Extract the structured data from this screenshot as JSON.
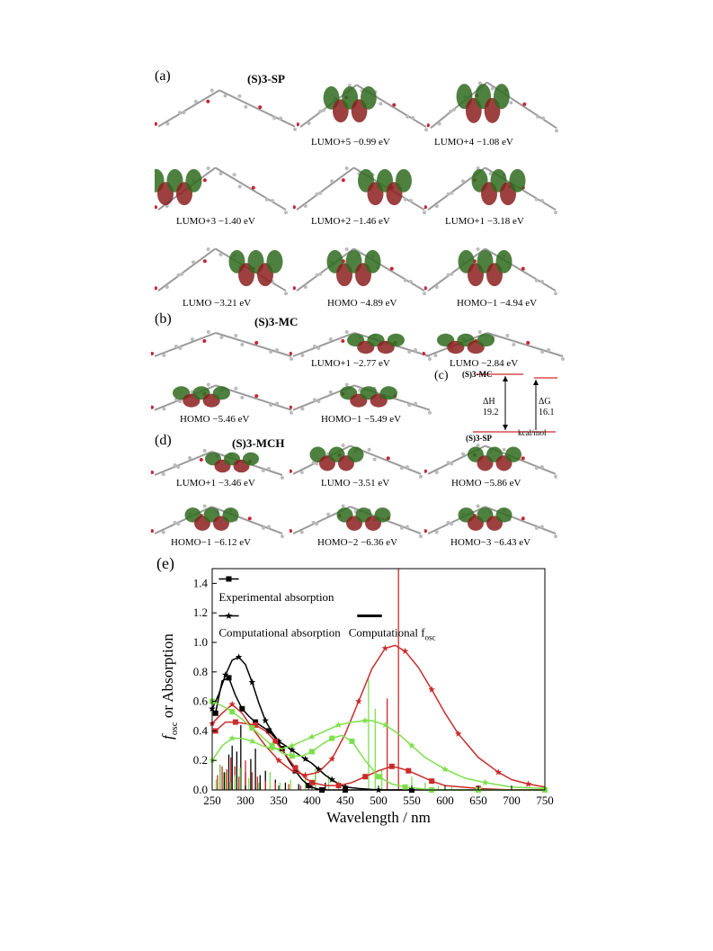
{
  "panels": {
    "a": {
      "label": "(a)",
      "title": "(S)3-SP",
      "captions": [
        "LUMO+5 −0.99 eV",
        "LUMO+4 −1.08 eV",
        "LUMO+3 −1.40 eV",
        "LUMO+2 −1.46 eV",
        "LUMO+1 −3.18 eV",
        "LUMO −3.21 eV",
        "HOMO −4.89 eV",
        "HOMO−1 −4.94 eV"
      ]
    },
    "b": {
      "label": "(b)",
      "title": "(S)3-MC",
      "captions": [
        "LUMO+1 −2.77 eV",
        "LUMO −2.84 eV",
        "HOMO −5.46 eV",
        "HOMO−1 −5.49 eV"
      ]
    },
    "c": {
      "label": "(c)",
      "top": "(S)3-MC",
      "bottom": "(S)3-SP",
      "dh_label": "ΔH",
      "dh_value": "19.2",
      "dg_label": "ΔG",
      "dg_value": "16.1",
      "unit": "kcal/mol"
    },
    "d": {
      "label": "(d)",
      "title": "(S)3-MCH",
      "captions": [
        "LUMO+1 −3.46 eV",
        "LUMO −3.51 eV",
        "HOMO −5.86 eV",
        "HOMO−1 −6.12 eV",
        "HOMO−2 −6.36 eV",
        "HOMO−3 −6.43 eV"
      ]
    },
    "e": {
      "label": "(e)"
    }
  },
  "colors": {
    "black": "#000000",
    "red": "#cc2a2a",
    "green": "#7de04a",
    "orbital_red": "#8b1e1e",
    "orbital_green": "#2f6b1e"
  },
  "chart_data": {
    "type": "line",
    "xlabel": "Wavelength / nm",
    "ylabel_main": "f",
    "ylabel_sub": "osc",
    "ylabel_rest": " or Absorption",
    "xlim": [
      250,
      750
    ],
    "ylim": [
      0,
      1.5
    ],
    "xticks": [
      250,
      300,
      350,
      400,
      450,
      500,
      550,
      600,
      650,
      700,
      750
    ],
    "yticks": [
      0.0,
      0.2,
      0.4,
      0.6,
      0.8,
      1.0,
      1.2,
      1.4
    ],
    "legend": {
      "experimental": "Experimental absorption",
      "computational": "Computational absorption",
      "fosc_main": "Computational f",
      "fosc_sub": "osc"
    },
    "series": [
      {
        "kind": "experimental",
        "color": "black",
        "x": [
          255,
          265,
          275,
          285,
          295,
          305,
          315,
          325,
          335,
          345,
          355,
          365,
          375,
          385,
          395,
          405,
          415,
          425,
          450,
          500,
          550,
          600,
          650,
          700,
          750
        ],
        "y": [
          0.52,
          0.74,
          0.76,
          0.64,
          0.55,
          0.5,
          0.46,
          0.43,
          0.4,
          0.35,
          0.28,
          0.2,
          0.13,
          0.07,
          0.03,
          0.01,
          0.0,
          0.0,
          0.0,
          0.0,
          0.0,
          0.0,
          0.0,
          0.0,
          0.0
        ]
      },
      {
        "kind": "computational",
        "color": "black",
        "x": [
          250,
          260,
          270,
          280,
          290,
          300,
          310,
          320,
          330,
          340,
          350,
          360,
          370,
          380,
          390,
          400,
          410,
          420,
          430,
          440,
          450,
          470,
          500,
          550
        ],
        "y": [
          0.55,
          0.65,
          0.78,
          0.88,
          0.9,
          0.85,
          0.73,
          0.59,
          0.47,
          0.39,
          0.33,
          0.3,
          0.27,
          0.24,
          0.21,
          0.18,
          0.14,
          0.1,
          0.07,
          0.04,
          0.02,
          0.01,
          0.0,
          0.0
        ]
      },
      {
        "kind": "experimental",
        "color": "red",
        "x": [
          255,
          270,
          285,
          300,
          315,
          330,
          345,
          360,
          375,
          390,
          400,
          420,
          440,
          460,
          480,
          500,
          520,
          530,
          545,
          560,
          580,
          600,
          650,
          700,
          750
        ],
        "y": [
          0.4,
          0.46,
          0.46,
          0.45,
          0.44,
          0.4,
          0.33,
          0.24,
          0.15,
          0.08,
          0.05,
          0.03,
          0.03,
          0.05,
          0.09,
          0.13,
          0.16,
          0.15,
          0.13,
          0.1,
          0.06,
          0.03,
          0.01,
          0.0,
          0.0
        ]
      },
      {
        "kind": "computational",
        "color": "red",
        "x": [
          250,
          265,
          280,
          295,
          310,
          330,
          350,
          370,
          390,
          410,
          430,
          450,
          470,
          490,
          510,
          525,
          540,
          560,
          580,
          600,
          620,
          650,
          680,
          700,
          725,
          750
        ],
        "y": [
          0.45,
          0.52,
          0.58,
          0.52,
          0.42,
          0.3,
          0.2,
          0.13,
          0.1,
          0.12,
          0.21,
          0.38,
          0.6,
          0.82,
          0.96,
          0.98,
          0.94,
          0.83,
          0.68,
          0.52,
          0.38,
          0.22,
          0.12,
          0.07,
          0.04,
          0.02
        ]
      },
      {
        "kind": "experimental",
        "color": "green",
        "x": [
          250,
          265,
          280,
          295,
          310,
          325,
          340,
          355,
          370,
          385,
          400,
          415,
          430,
          445,
          460,
          480,
          500,
          520,
          540,
          560,
          580,
          600,
          650,
          700,
          750
        ],
        "y": [
          0.6,
          0.57,
          0.53,
          0.48,
          0.42,
          0.36,
          0.3,
          0.25,
          0.23,
          0.23,
          0.26,
          0.31,
          0.35,
          0.37,
          0.33,
          0.2,
          0.09,
          0.04,
          0.02,
          0.01,
          0.0,
          0.0,
          0.0,
          0.0,
          0.0
        ]
      },
      {
        "kind": "computational",
        "color": "green",
        "x": [
          250,
          265,
          280,
          295,
          310,
          325,
          340,
          355,
          370,
          385,
          400,
          420,
          440,
          460,
          480,
          490,
          510,
          530,
          550,
          570,
          600,
          630,
          660,
          700,
          750
        ],
        "y": [
          0.2,
          0.3,
          0.35,
          0.35,
          0.33,
          0.3,
          0.28,
          0.28,
          0.3,
          0.33,
          0.36,
          0.4,
          0.44,
          0.46,
          0.47,
          0.47,
          0.44,
          0.38,
          0.3,
          0.22,
          0.14,
          0.08,
          0.05,
          0.02,
          0.01
        ]
      }
    ],
    "sticks": [
      {
        "color": "black",
        "x": [
          262,
          268,
          275,
          280,
          287,
          293,
          300,
          308,
          315,
          322,
          330,
          345,
          360,
          380,
          405,
          420
        ],
        "y": [
          0.17,
          0.12,
          0.24,
          0.3,
          0.26,
          0.44,
          0.12,
          0.21,
          0.28,
          0.1,
          0.13,
          0.07,
          0.05,
          0.04,
          0.12,
          0.05
        ]
      },
      {
        "color": "red",
        "x": [
          258,
          265,
          272,
          278,
          284,
          290,
          300,
          310,
          318,
          330,
          345,
          365,
          383,
          395,
          513,
          530
        ],
        "y": [
          0.1,
          0.16,
          0.14,
          0.22,
          0.16,
          0.09,
          0.2,
          0.12,
          0.09,
          0.06,
          0.05,
          0.04,
          0.03,
          0.04,
          0.62,
          1.55
        ]
      },
      {
        "color": "green",
        "x": [
          256,
          262,
          270,
          277,
          284,
          292,
          305,
          320,
          337,
          352,
          368,
          390,
          405,
          425,
          440,
          485,
          495,
          505,
          550,
          570,
          590,
          610
        ],
        "y": [
          0.07,
          0.17,
          0.12,
          0.05,
          0.1,
          0.15,
          0.08,
          0.05,
          0.12,
          0.05,
          0.07,
          0.09,
          0.14,
          0.1,
          0.06,
          0.75,
          0.55,
          0.14,
          0.09,
          0.05,
          0.03,
          0.02
        ]
      }
    ]
  }
}
